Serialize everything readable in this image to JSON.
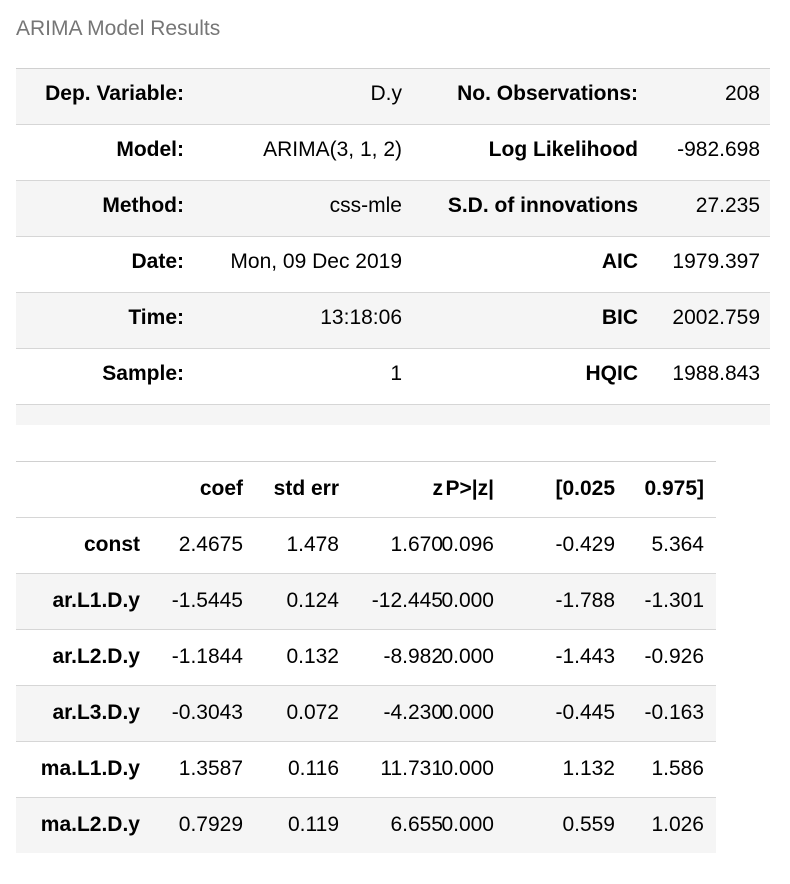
{
  "caption": "ARIMA Model Results",
  "summary_rows": [
    {
      "label1": "Dep. Variable:",
      "value1": "D.y",
      "label2": "No. Observations:",
      "value2": "208"
    },
    {
      "label1": "Model:",
      "value1": "ARIMA(3, 1, 2)",
      "label2": "Log Likelihood",
      "value2": "-982.698"
    },
    {
      "label1": "Method:",
      "value1": "css-mle",
      "label2": "S.D. of innovations",
      "value2": "27.235"
    },
    {
      "label1": "Date:",
      "value1": "Mon, 09 Dec 2019",
      "label2": "AIC",
      "value2": "1979.397"
    },
    {
      "label1": "Time:",
      "value1": "13:18:06",
      "label2": "BIC",
      "value2": "2002.759"
    },
    {
      "label1": "Sample:",
      "value1": "1",
      "label2": "HQIC",
      "value2": "1988.843"
    }
  ],
  "coef_table": {
    "headers": [
      "",
      "coef",
      "std err",
      "z",
      "P>|z|",
      "[0.025",
      "0.975]"
    ],
    "rows": [
      [
        "const",
        "2.4675",
        "1.478",
        "1.670",
        "0.096",
        "-0.429",
        "5.364"
      ],
      [
        "ar.L1.D.y",
        "-1.5445",
        "0.124",
        "-12.445",
        "0.000",
        "-1.788",
        "-1.301"
      ],
      [
        "ar.L2.D.y",
        "-1.1844",
        "0.132",
        "-8.982",
        "0.000",
        "-1.443",
        "-0.926"
      ],
      [
        "ar.L3.D.y",
        "-0.3043",
        "0.072",
        "-4.230",
        "0.000",
        "-0.445",
        "-0.163"
      ],
      [
        "ma.L1.D.y",
        "1.3587",
        "0.116",
        "11.731",
        "0.000",
        "1.132",
        "1.586"
      ],
      [
        "ma.L2.D.y",
        "0.7929",
        "0.119",
        "6.655",
        "0.000",
        "0.559",
        "1.026"
      ]
    ]
  }
}
